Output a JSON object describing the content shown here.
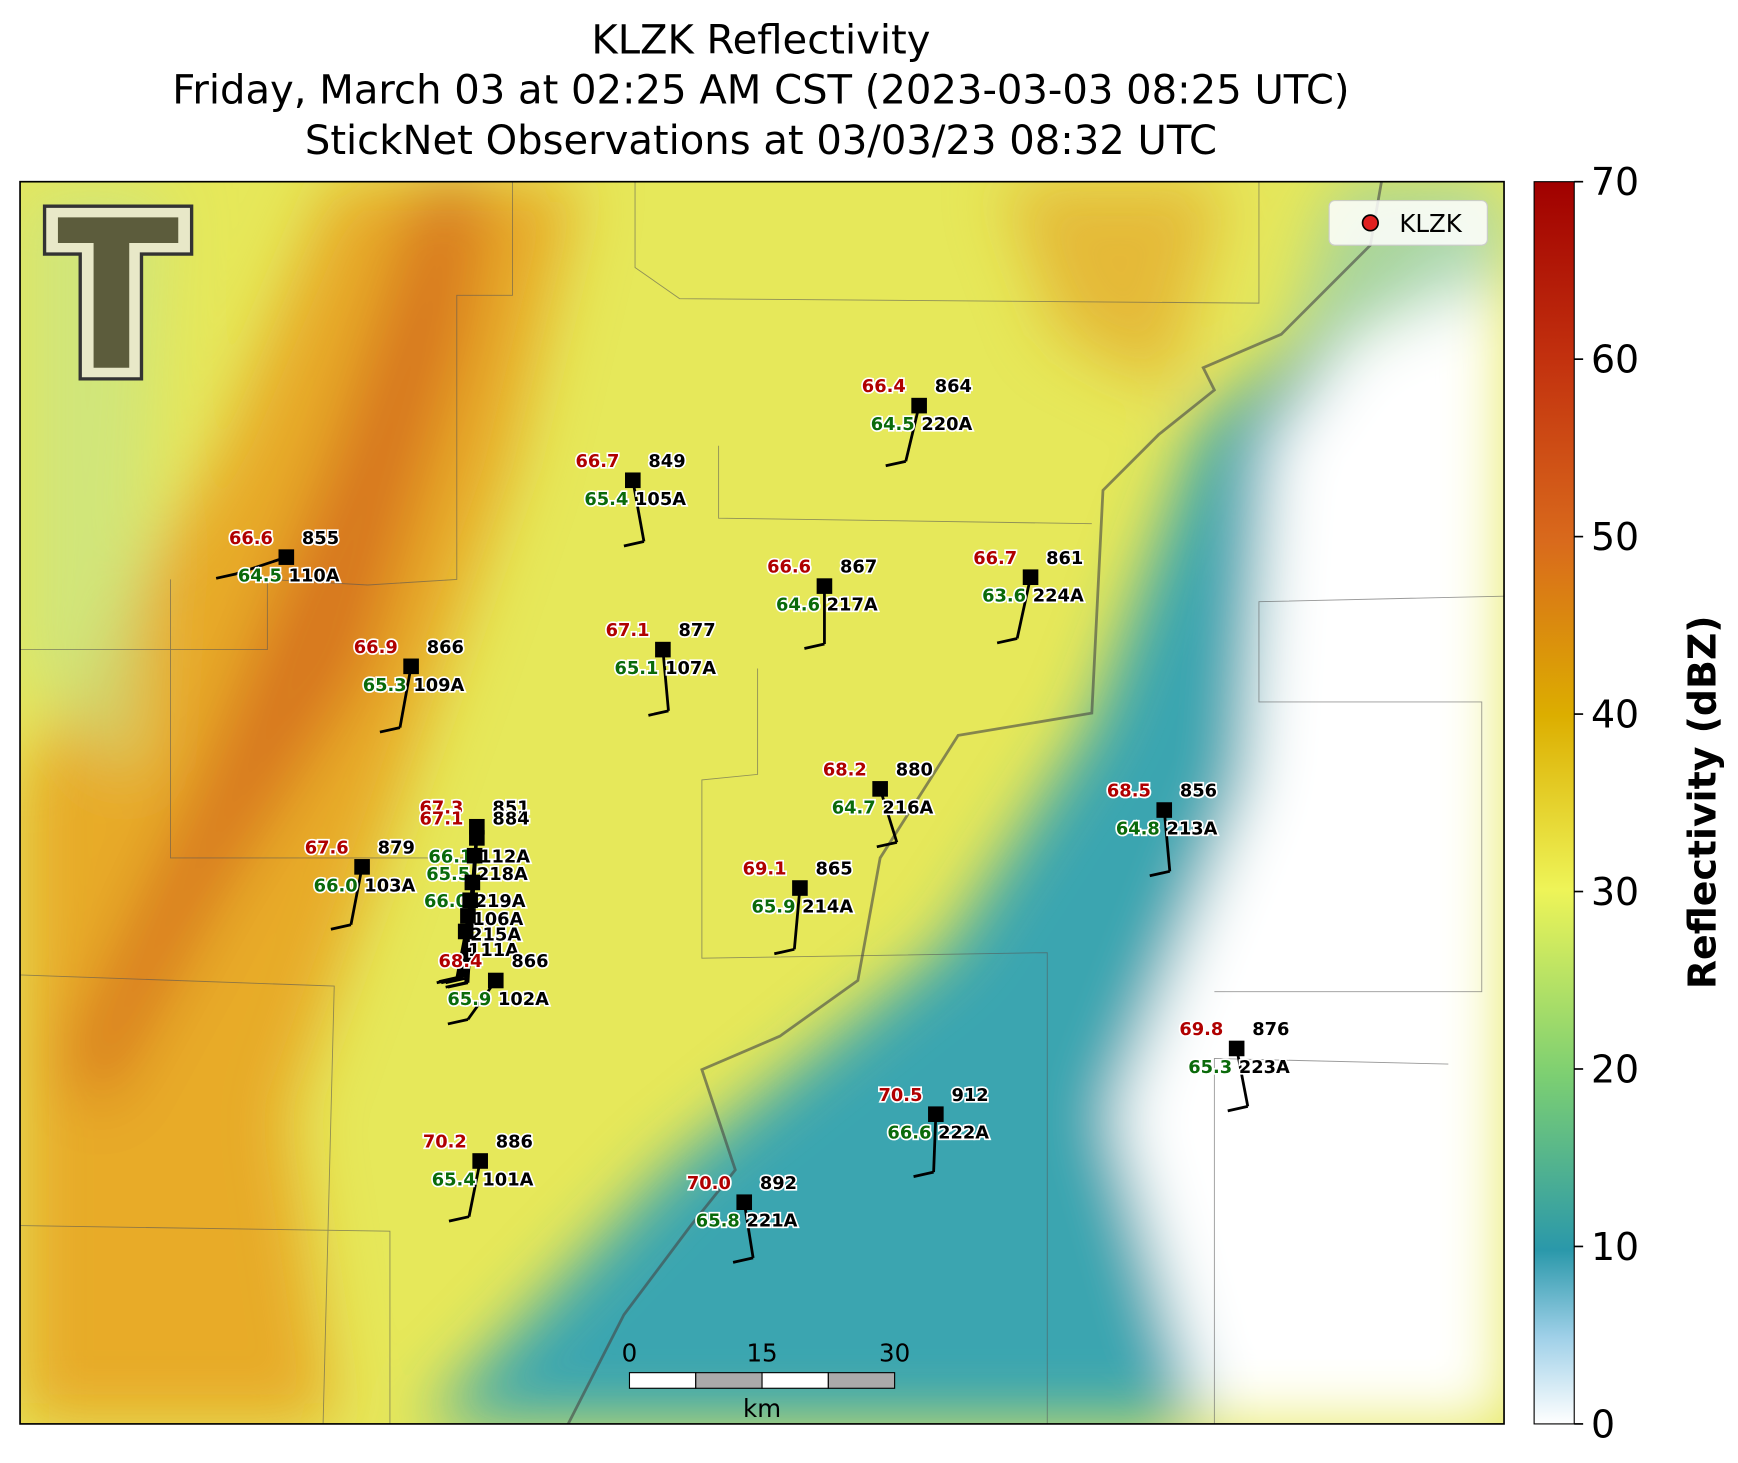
{
  "title": [
    "KLZK Reflectivity",
    "Friday, March 03 at 02:25 AM CST (2023-03-03 08:25 UTC)",
    "StickNet Observations at 03/03/23 08:32 UTC"
  ],
  "legend": "KLZK",
  "colorbar": {
    "label": "Reflectivity (dBZ)",
    "lim": [
      0,
      70
    ],
    "ticks": [
      0,
      10,
      20,
      30,
      40,
      50,
      60,
      70
    ]
  },
  "scale_bar": {
    "ticks": [
      0,
      15,
      30
    ],
    "unit": "km"
  },
  "stations": [
    {
      "temp": "66.4",
      "pres": "864",
      "dew": "64.5",
      "id": "220A"
    },
    {
      "temp": "66.7",
      "pres": "849",
      "dew": "65.4",
      "id": "105A"
    },
    {
      "temp": "66.6",
      "pres": "855",
      "dew": "64.5",
      "id": "110A"
    },
    {
      "temp": "66.6",
      "pres": "867",
      "dew": "64.6",
      "id": "217A"
    },
    {
      "temp": "66.7",
      "pres": "861",
      "dew": "63.6",
      "id": "224A"
    },
    {
      "temp": "67.1",
      "pres": "877",
      "dew": "65.1",
      "id": "107A"
    },
    {
      "temp": "66.9",
      "pres": "866",
      "dew": "65.3",
      "id": "109A"
    },
    {
      "temp": "68.2",
      "pres": "880",
      "dew": "64.7",
      "id": "216A"
    },
    {
      "temp": "68.5",
      "pres": "856",
      "dew": "64.8",
      "id": "213A"
    },
    {
      "temp": "67.3",
      "pres": "851"
    },
    {
      "temp": "67.1",
      "pres": "884",
      "dew": "66.1",
      "id": "112A"
    },
    {
      "dew": "65.5",
      "id": "218A"
    },
    {
      "dew": "66.0",
      "id": "219A"
    },
    {
      "id": "106A"
    },
    {
      "id": "215A"
    },
    {
      "id": "111A"
    },
    {
      "temp": "67.6",
      "pres": "879",
      "dew": "66.0",
      "id": "103A"
    },
    {
      "temp": "69.1",
      "pres": "865",
      "dew": "65.9",
      "id": "214A"
    },
    {
      "temp": "68.4",
      "pres": "866",
      "dew": "65.9",
      "id": "102A"
    },
    {
      "temp": "69.8",
      "pres": "876",
      "dew": "65.3",
      "id": "223A"
    },
    {
      "temp": "70.5",
      "pres": "912",
      "dew": "66.6",
      "id": "222A"
    },
    {
      "temp": "70.2",
      "pres": "886",
      "dew": "65.4",
      "id": "101A"
    },
    {
      "temp": "70.0",
      "pres": "892",
      "dew": "65.8",
      "id": "221A"
    }
  ]
}
